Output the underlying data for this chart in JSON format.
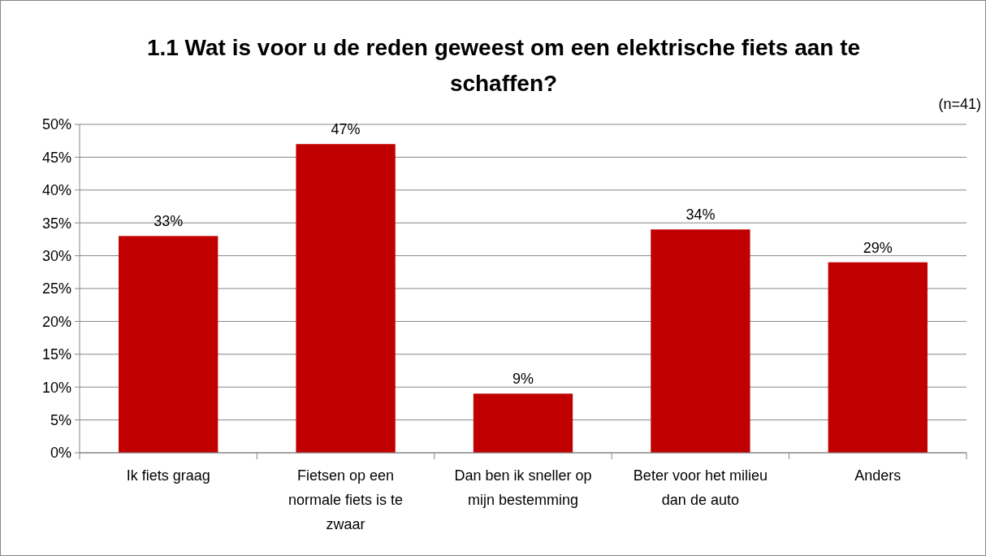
{
  "chart_data": {
    "type": "bar",
    "title": "1.1 Wat is voor u de reden geweest om een elektrische fiets aan te schaffen?",
    "annotations": [
      "(n=41)"
    ],
    "categories": [
      "Ik fiets graag",
      "Fietsen op een normale fiets is te zwaar",
      "Dan ben ik sneller op mijn bestemming",
      "Beter voor het milieu dan de auto",
      "Anders"
    ],
    "values": [
      33,
      47,
      9,
      34,
      29
    ],
    "value_labels": [
      "33%",
      "47%",
      "9%",
      "34%",
      "29%"
    ],
    "color": "#c00000",
    "ylim": [
      0,
      50
    ],
    "yticks": [
      {
        "value": 0,
        "label": "0%"
      },
      {
        "value": 5,
        "label": "5%"
      },
      {
        "value": 10,
        "label": "10%"
      },
      {
        "value": 15,
        "label": "15%"
      },
      {
        "value": 20,
        "label": "20%"
      },
      {
        "value": 25,
        "label": "25%"
      },
      {
        "value": 30,
        "label": "30%"
      },
      {
        "value": 35,
        "label": "35%"
      },
      {
        "value": 40,
        "label": "40%"
      },
      {
        "value": 45,
        "label": "45%"
      },
      {
        "value": 50,
        "label": "50%"
      }
    ],
    "grid": "y"
  }
}
